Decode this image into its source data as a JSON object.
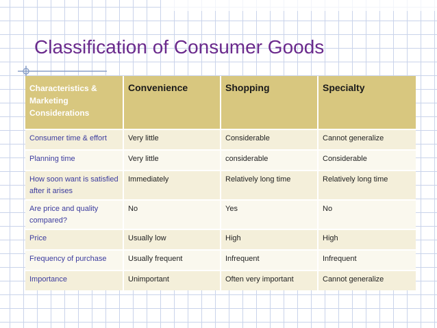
{
  "slide": {
    "title": "Classification of Consumer Goods"
  },
  "colors": {
    "title": "#6a2a8c",
    "header_bg": "#d8c77f",
    "row_odd": "#f4efda",
    "row_even": "#faf8ee",
    "first_col_text": "#3b3b9e",
    "grid": "#c9d3ea"
  },
  "table": {
    "headers": [
      "Characteristics & Marketing Considerations",
      "Convenience",
      "Shopping",
      "Specialty"
    ],
    "rows": [
      [
        "Consumer time & effort",
        "Very little",
        "Considerable",
        "Cannot generalize"
      ],
      [
        "Planning time",
        "Very little",
        "considerable",
        "Considerable"
      ],
      [
        "How soon want is satisfied after it arises",
        "Immediately",
        "Relatively long time",
        "Relatively long time"
      ],
      [
        "Are price and quality compared?",
        "No",
        "Yes",
        "No"
      ],
      [
        "Price",
        "Usually low",
        "High",
        "High"
      ],
      [
        "Frequency of purchase",
        "Usually frequent",
        "Infrequent",
        "Infrequent"
      ],
      [
        "Importance",
        "Unimportant",
        "Often very important",
        "Cannot generalize"
      ]
    ]
  }
}
